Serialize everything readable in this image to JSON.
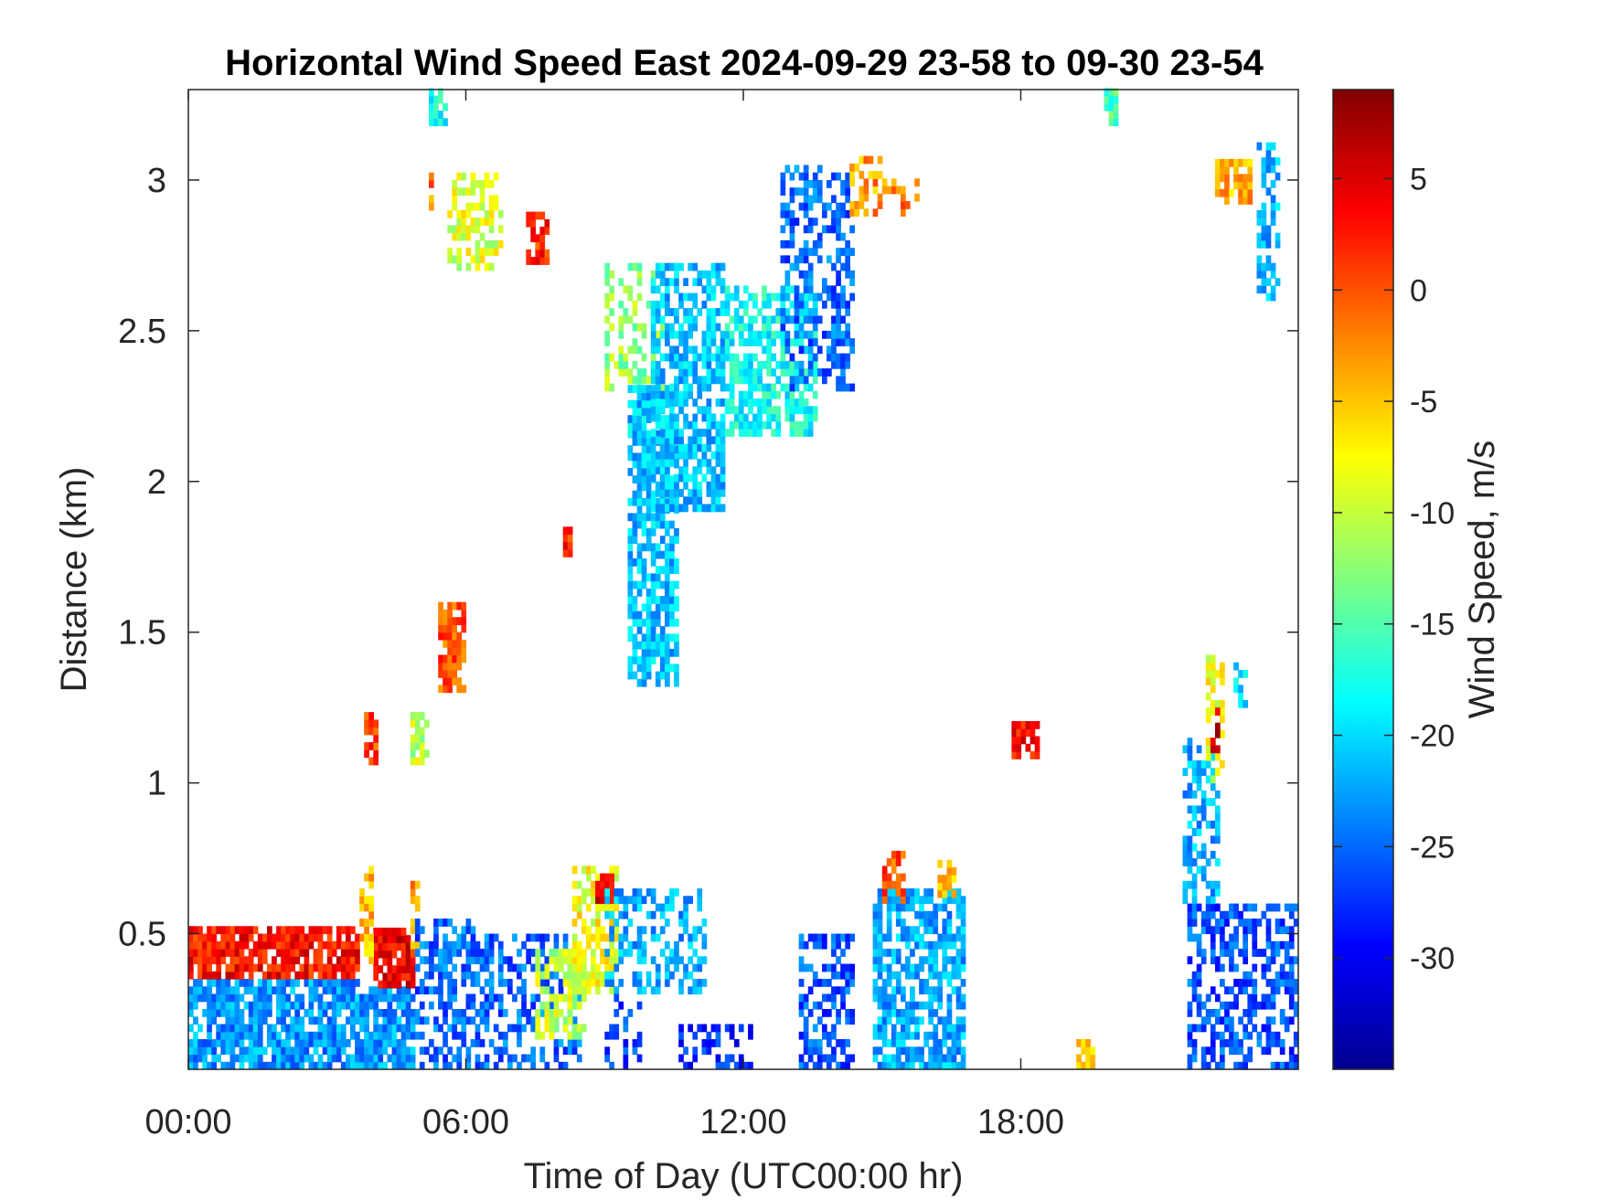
{
  "chart_data": {
    "type": "heatmap",
    "title": "Horizontal Wind Speed East 2024-09-29 23-58 to 09-30 23-54",
    "xlabel": "Time of Day (UTC00:00 hr)",
    "ylabel": "Distance (km)",
    "xlim_hours": [
      0,
      24
    ],
    "ylim_km": [
      0.05,
      3.3
    ],
    "x_ticks": [
      {
        "value": 0,
        "label": "00:00"
      },
      {
        "value": 6,
        "label": "06:00"
      },
      {
        "value": 12,
        "label": "12:00"
      },
      {
        "value": 18,
        "label": "18:00"
      }
    ],
    "y_ticks": [
      {
        "value": 0.5,
        "label": "0.5"
      },
      {
        "value": 1,
        "label": "1"
      },
      {
        "value": 1.5,
        "label": "1.5"
      },
      {
        "value": 2,
        "label": "2"
      },
      {
        "value": 2.5,
        "label": "2.5"
      },
      {
        "value": 3,
        "label": "3"
      }
    ],
    "colorbar": {
      "label": "Wind Speed, m/s",
      "colormap": "jet",
      "range": [
        -35,
        9
      ],
      "ticks": [
        {
          "value": 5,
          "label": "5"
        },
        {
          "value": 0,
          "label": "0"
        },
        {
          "value": -5,
          "label": "-5"
        },
        {
          "value": -10,
          "label": "-10"
        },
        {
          "value": -15,
          "label": "-15"
        },
        {
          "value": -20,
          "label": "-20"
        },
        {
          "value": -25,
          "label": "-25"
        },
        {
          "value": -30,
          "label": "-30"
        }
      ]
    },
    "regions": [
      {
        "t0": 0.0,
        "t1": 3.7,
        "d0": 0.05,
        "d1": 0.35,
        "v": -23,
        "density": 0.8
      },
      {
        "t0": 0.0,
        "t1": 3.7,
        "d0": 0.35,
        "d1": 0.52,
        "v": 3,
        "density": 0.85
      },
      {
        "t0": 3.7,
        "t1": 4.9,
        "d0": 0.05,
        "d1": 0.32,
        "v": -23,
        "density": 0.8
      },
      {
        "t0": 4.0,
        "t1": 4.9,
        "d0": 0.32,
        "d1": 0.5,
        "v": 4,
        "density": 0.85
      },
      {
        "t0": 3.7,
        "t1": 4.0,
        "d0": 0.4,
        "d1": 0.72,
        "v": -5,
        "density": 0.5
      },
      {
        "t0": 4.8,
        "t1": 5.0,
        "d0": 0.4,
        "d1": 0.7,
        "v": -3,
        "density": 0.5
      },
      {
        "t0": 4.9,
        "t1": 6.2,
        "d0": 0.05,
        "d1": 0.55,
        "v": -25,
        "density": 0.55
      },
      {
        "t0": 6.2,
        "t1": 8.5,
        "d0": 0.05,
        "d1": 0.5,
        "v": -25,
        "density": 0.45
      },
      {
        "t0": 7.5,
        "t1": 8.6,
        "d0": 0.15,
        "d1": 0.45,
        "v": -10,
        "density": 0.6
      },
      {
        "t0": 8.3,
        "t1": 9.3,
        "d0": 0.3,
        "d1": 0.72,
        "v": -8,
        "density": 0.55
      },
      {
        "t0": 8.8,
        "t1": 9.2,
        "d0": 0.6,
        "d1": 0.7,
        "v": 5,
        "density": 0.85
      },
      {
        "t0": 9.0,
        "t1": 11.2,
        "d0": 0.3,
        "d1": 0.65,
        "v": -22,
        "density": 0.45
      },
      {
        "t0": 9.0,
        "t1": 9.8,
        "d0": 0.05,
        "d1": 0.3,
        "v": -27,
        "density": 0.25
      },
      {
        "t0": 10.5,
        "t1": 12.3,
        "d0": 0.05,
        "d1": 0.2,
        "v": -28,
        "density": 0.35
      },
      {
        "t0": 13.2,
        "t1": 14.4,
        "d0": 0.05,
        "d1": 0.5,
        "v": -26,
        "density": 0.5
      },
      {
        "t0": 14.8,
        "t1": 16.8,
        "d0": 0.05,
        "d1": 0.65,
        "v": -22,
        "density": 0.7
      },
      {
        "t0": 15.0,
        "t1": 15.5,
        "d0": 0.6,
        "d1": 0.77,
        "v": 0,
        "density": 0.65
      },
      {
        "t0": 16.2,
        "t1": 16.6,
        "d0": 0.62,
        "d1": 0.75,
        "v": -5,
        "density": 0.45
      },
      {
        "t0": 21.6,
        "t1": 24.0,
        "d0": 0.05,
        "d1": 0.6,
        "v": -26,
        "density": 0.55
      },
      {
        "t0": 21.5,
        "t1": 22.3,
        "d0": 0.6,
        "d1": 1.15,
        "v": -22,
        "density": 0.5
      },
      {
        "t0": 22.0,
        "t1": 22.4,
        "d0": 1.0,
        "d1": 1.42,
        "v": -8,
        "density": 0.5
      },
      {
        "t0": 22.1,
        "t1": 22.3,
        "d0": 1.1,
        "d1": 1.25,
        "v": 5,
        "density": 0.5
      },
      {
        "t0": 22.6,
        "t1": 22.9,
        "d0": 1.25,
        "d1": 1.38,
        "v": -20,
        "density": 0.55
      },
      {
        "t0": 19.2,
        "t1": 19.6,
        "d0": 0.05,
        "d1": 0.14,
        "v": -6,
        "density": 0.9
      },
      {
        "t0": 17.8,
        "t1": 18.4,
        "d0": 1.08,
        "d1": 1.2,
        "v": 3,
        "density": 0.8
      },
      {
        "t0": 3.8,
        "t1": 4.1,
        "d0": 1.06,
        "d1": 1.22,
        "v": 1,
        "density": 0.8
      },
      {
        "t0": 4.8,
        "t1": 5.2,
        "d0": 1.06,
        "d1": 1.22,
        "v": -10,
        "density": 0.7
      },
      {
        "t0": 5.4,
        "t1": 6.0,
        "d0": 1.3,
        "d1": 1.6,
        "v": 0,
        "density": 0.75
      },
      {
        "t0": 8.1,
        "t1": 8.3,
        "d0": 1.75,
        "d1": 1.85,
        "v": 2,
        "density": 0.9
      },
      {
        "t0": 5.2,
        "t1": 5.6,
        "d0": 3.18,
        "d1": 3.3,
        "v": -18,
        "density": 0.7
      },
      {
        "t0": 5.2,
        "t1": 5.3,
        "d0": 2.9,
        "d1": 3.02,
        "v": -2,
        "density": 0.7
      },
      {
        "t0": 5.6,
        "t1": 6.8,
        "d0": 2.7,
        "d1": 3.02,
        "v": -9,
        "density": 0.55
      },
      {
        "t0": 7.3,
        "t1": 7.8,
        "d0": 2.72,
        "d1": 2.88,
        "v": 2,
        "density": 0.75
      },
      {
        "t0": 9.0,
        "t1": 10.3,
        "d0": 2.3,
        "d1": 2.72,
        "v": -12,
        "density": 0.4
      },
      {
        "t0": 9.5,
        "t1": 10.6,
        "d0": 1.32,
        "d1": 2.3,
        "v": -21,
        "density": 0.75
      },
      {
        "t0": 10.0,
        "t1": 11.6,
        "d0": 1.9,
        "d1": 2.72,
        "v": -21,
        "density": 0.65
      },
      {
        "t0": 11.6,
        "t1": 13.6,
        "d0": 2.15,
        "d1": 2.65,
        "v": -18,
        "density": 0.65
      },
      {
        "t0": 12.8,
        "t1": 14.4,
        "d0": 2.3,
        "d1": 3.05,
        "v": -25,
        "density": 0.5
      },
      {
        "t0": 14.3,
        "t1": 15.0,
        "d0": 2.88,
        "d1": 3.08,
        "v": -3,
        "density": 0.6
      },
      {
        "t0": 15.0,
        "t1": 15.8,
        "d0": 2.88,
        "d1": 3.0,
        "v": -2,
        "density": 0.45
      },
      {
        "t0": 19.8,
        "t1": 20.1,
        "d0": 3.18,
        "d1": 3.3,
        "v": -15,
        "density": 0.75
      },
      {
        "t0": 22.2,
        "t1": 23.0,
        "d0": 2.92,
        "d1": 3.05,
        "v": -4,
        "density": 0.6
      },
      {
        "t0": 23.1,
        "t1": 23.6,
        "d0": 2.6,
        "d1": 3.12,
        "v": -22,
        "density": 0.5
      }
    ]
  }
}
